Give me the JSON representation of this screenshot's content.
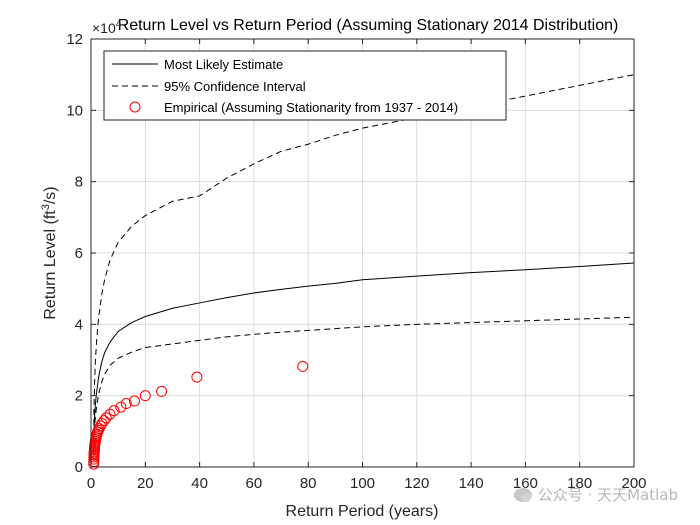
{
  "chart_data": {
    "type": "line",
    "title": "Return Level vs Return Period (Assuming Stationary 2014 Distribution)",
    "xlabel": "Return Period (years)",
    "ylabel_main": "Return Level (ft",
    "ylabel_sup": "3",
    "ylabel_tail": "/s)",
    "exponent_label": "×10",
    "exponent_power": "4",
    "xlim": [
      0,
      200
    ],
    "ylim": [
      0,
      12
    ],
    "y_scale_factor": 10000,
    "xticks": [
      0,
      20,
      40,
      60,
      80,
      100,
      120,
      140,
      160,
      180,
      200
    ],
    "yticks": [
      0,
      2,
      4,
      6,
      8,
      10,
      12
    ],
    "grid": true,
    "legend_position": "top-left",
    "legend": [
      {
        "label": "Most Likely Estimate",
        "style": "solid",
        "color": "#000000"
      },
      {
        "label": "95% Confidence Interval",
        "style": "dashed",
        "color": "#000000"
      },
      {
        "label": "Empirical (Assuming Stationarity from 1937 - 2014)",
        "style": "marker-circle",
        "color": "#ff0000"
      }
    ],
    "series": [
      {
        "name": "Most Likely Estimate",
        "style": "solid",
        "color": "#000000",
        "x": [
          1.01,
          1.1,
          1.3,
          1.6,
          2,
          2.5,
          3,
          4,
          5,
          7,
          10,
          15,
          20,
          30,
          40,
          50,
          60,
          70,
          80,
          90,
          100,
          120,
          140,
          160,
          180,
          200
        ],
        "y": [
          0.55,
          1.0,
          1.4,
          1.75,
          2.05,
          2.35,
          2.6,
          2.95,
          3.2,
          3.5,
          3.8,
          4.05,
          4.22,
          4.45,
          4.6,
          4.75,
          4.88,
          4.98,
          5.07,
          5.15,
          5.25,
          5.35,
          5.45,
          5.53,
          5.62,
          5.72
        ]
      },
      {
        "name": "95% Confidence Interval (upper)",
        "style": "dashed",
        "color": "#000000",
        "x": [
          1.01,
          1.1,
          1.3,
          1.6,
          2,
          2.5,
          3,
          4,
          5,
          7,
          10,
          15,
          20,
          30,
          40,
          50,
          60,
          70,
          80,
          90,
          100,
          120,
          140,
          160,
          180,
          200
        ],
        "y": [
          0.9,
          1.6,
          2.3,
          2.95,
          3.45,
          3.95,
          4.3,
          4.85,
          5.25,
          5.8,
          6.3,
          6.75,
          7.05,
          7.45,
          7.6,
          8.1,
          8.5,
          8.85,
          9.05,
          9.3,
          9.5,
          9.8,
          10.1,
          10.4,
          10.7,
          11.0
        ]
      },
      {
        "name": "95% Confidence Interval (lower)",
        "style": "dashed",
        "color": "#000000",
        "x": [
          1.01,
          1.1,
          1.3,
          1.6,
          2,
          2.5,
          3,
          4,
          5,
          7,
          10,
          15,
          20,
          30,
          40,
          50,
          60,
          70,
          80,
          90,
          100,
          120,
          140,
          160,
          180,
          200
        ],
        "y": [
          0.4,
          0.75,
          1.1,
          1.4,
          1.65,
          1.9,
          2.1,
          2.4,
          2.6,
          2.85,
          3.05,
          3.22,
          3.35,
          3.45,
          3.55,
          3.65,
          3.72,
          3.78,
          3.83,
          3.88,
          3.93,
          4.0,
          4.05,
          4.1,
          4.15,
          4.2
        ]
      },
      {
        "name": "Empirical (Assuming Stationarity from 1937 - 2014)",
        "style": "marker-circle",
        "color": "#ff0000",
        "x": [
          1.0,
          1.02,
          1.05,
          1.08,
          1.1,
          1.14,
          1.18,
          1.22,
          1.27,
          1.32,
          1.4,
          1.5,
          1.6,
          1.7,
          1.85,
          2.0,
          2.2,
          2.45,
          2.7,
          3.0,
          3.5,
          4.0,
          4.8,
          5.6,
          7.0,
          8.5,
          11,
          13,
          16,
          20,
          26,
          39,
          78
        ],
        "y": [
          0.08,
          0.15,
          0.22,
          0.28,
          0.33,
          0.38,
          0.42,
          0.47,
          0.52,
          0.57,
          0.62,
          0.67,
          0.72,
          0.77,
          0.82,
          0.87,
          0.92,
          0.98,
          1.03,
          1.08,
          1.15,
          1.22,
          1.3,
          1.38,
          1.48,
          1.58,
          1.68,
          1.78,
          1.85,
          2.0,
          2.12,
          2.52,
          2.82
        ]
      }
    ]
  },
  "watermark": {
    "icon": "wechat-icon",
    "text": "公众号 · 天天Matlab"
  }
}
